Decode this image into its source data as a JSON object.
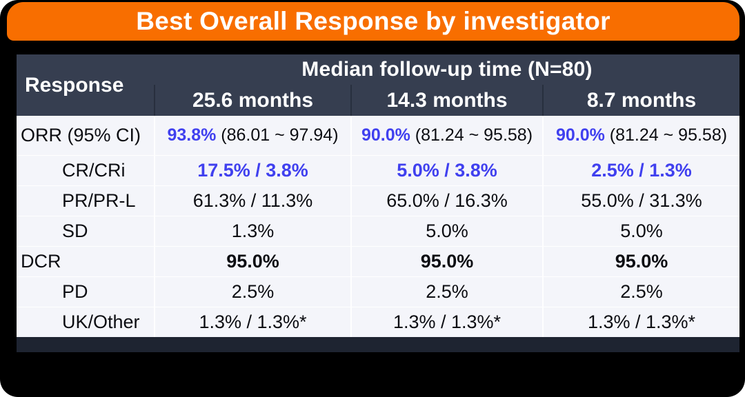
{
  "title": "Best Overall Response by investigator",
  "colors": {
    "title_bar_orange": "#F86E00",
    "table_header_navy": "#363E50",
    "accent_blue": "#4040EF",
    "body_background": "#F4F5FA",
    "card_background": "#000000"
  },
  "table": {
    "response_header": "Response",
    "group_header": "Median follow-up time (N=80)",
    "column_headers": [
      "25.6 months",
      "14.3 months",
      "8.7 months"
    ],
    "rows": [
      {
        "label": "ORR (95% CI)",
        "indent": false,
        "style": "orr",
        "cells": [
          {
            "accent": "93.8%",
            "ci": "(86.01 ~ 97.94)"
          },
          {
            "accent": "90.0%",
            "ci": "(81.24 ~ 95.58)"
          },
          {
            "accent": "90.0%",
            "ci": "(81.24 ~ 95.58)"
          }
        ]
      },
      {
        "label": "CR/CRi",
        "indent": true,
        "style": "accent",
        "cells": [
          "17.5% / 3.8%",
          "5.0% / 3.8%",
          "2.5% / 1.3%"
        ]
      },
      {
        "label": "PR/PR-L",
        "indent": true,
        "style": "plain",
        "cells": [
          "61.3% / 11.3%",
          "65.0% / 16.3%",
          "55.0% / 31.3%"
        ]
      },
      {
        "label": "SD",
        "indent": true,
        "style": "plain",
        "cells": [
          "1.3%",
          "5.0%",
          "5.0%"
        ]
      },
      {
        "label": "DCR",
        "indent": false,
        "style": "bold",
        "cells": [
          "95.0%",
          "95.0%",
          "95.0%"
        ]
      },
      {
        "label": "PD",
        "indent": true,
        "style": "plain",
        "cells": [
          "2.5%",
          "2.5%",
          "2.5%"
        ]
      },
      {
        "label": "UK/Other",
        "indent": true,
        "style": "plain",
        "cells": [
          "1.3% / 1.3%*",
          "1.3% / 1.3%*",
          "1.3% / 1.3%*"
        ]
      }
    ]
  },
  "chart_data": {
    "type": "table",
    "title": "Best Overall Response by investigator",
    "group_header": "Median follow-up time (N=80)",
    "columns": [
      "Response",
      "25.6 months",
      "14.3 months",
      "8.7 months"
    ],
    "rows": [
      [
        "ORR (95% CI)",
        "93.8% (86.01 ~ 97.94)",
        "90.0% (81.24 ~ 95.58)",
        "90.0% (81.24 ~ 95.58)"
      ],
      [
        "CR/CRi",
        "17.5% / 3.8%",
        "5.0% / 3.8%",
        "2.5% / 1.3%"
      ],
      [
        "PR/PR-L",
        "61.3% / 11.3%",
        "65.0% / 16.3%",
        "55.0% / 31.3%"
      ],
      [
        "SD",
        "1.3%",
        "5.0%",
        "5.0%"
      ],
      [
        "DCR",
        "95.0%",
        "95.0%",
        "95.0%"
      ],
      [
        "PD",
        "2.5%",
        "2.5%",
        "2.5%"
      ],
      [
        "UK/Other",
        "1.3% / 1.3%*",
        "1.3% / 1.3%*",
        "1.3% / 1.3%*"
      ]
    ]
  }
}
